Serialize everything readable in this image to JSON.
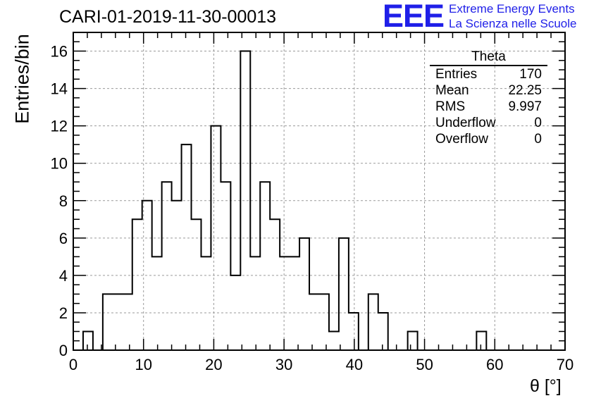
{
  "title": "CARI-01-2019-11-30-00013",
  "logo": {
    "mark": "EEE",
    "line1": "Extreme Energy Events",
    "line2": "La Scienza nelle Scuole",
    "color": "#1f1fe8"
  },
  "stats_box": {
    "title": "Theta",
    "rows": [
      {
        "label": "Entries",
        "value": "170"
      },
      {
        "label": "Mean",
        "value": "22.25"
      },
      {
        "label": "RMS",
        "value": "9.997"
      },
      {
        "label": "Underflow",
        "value": "0"
      },
      {
        "label": "Overflow",
        "value": "0"
      }
    ]
  },
  "chart_data": {
    "type": "bar",
    "histogram": true,
    "xlabel": "θ [°]",
    "ylabel": "Entries/bin",
    "xlim": [
      0,
      70
    ],
    "ylim": [
      0,
      17
    ],
    "bin_width": 1.4,
    "bin_lower_edges": [
      0,
      1.4,
      2.8,
      4.2,
      5.6,
      7,
      8.4,
      9.8,
      11.2,
      12.6,
      14,
      15.4,
      16.8,
      18.2,
      19.6,
      21,
      22.4,
      23.8,
      25.2,
      26.6,
      28,
      29.4,
      30.8,
      32.2,
      33.6,
      35,
      36.4,
      37.8,
      39.2,
      40.6,
      42,
      43.4,
      44.8,
      46.2,
      47.6,
      49,
      50.4,
      51.8,
      53.2,
      54.6,
      56,
      57.4,
      58.8,
      60.2,
      61.6,
      63,
      64.4,
      65.8,
      67.2,
      68.6
    ],
    "values": [
      0,
      1,
      0,
      3,
      3,
      3,
      7,
      8,
      5,
      9,
      8,
      11,
      7,
      5,
      12,
      9,
      4,
      16,
      5,
      9,
      7,
      5,
      5,
      6,
      3,
      3,
      1,
      6,
      2,
      0,
      3,
      2,
      0,
      0,
      1,
      0,
      0,
      0,
      0,
      0,
      0,
      1,
      0,
      0,
      0,
      0,
      0,
      0,
      0,
      0
    ],
    "xticks": [
      0,
      10,
      20,
      30,
      40,
      50,
      60,
      70
    ],
    "yticks": [
      0,
      2,
      4,
      6,
      8,
      10,
      12,
      14,
      16
    ],
    "grid": true,
    "line_color": "#000000",
    "grid_color": "#9a9a9a"
  }
}
